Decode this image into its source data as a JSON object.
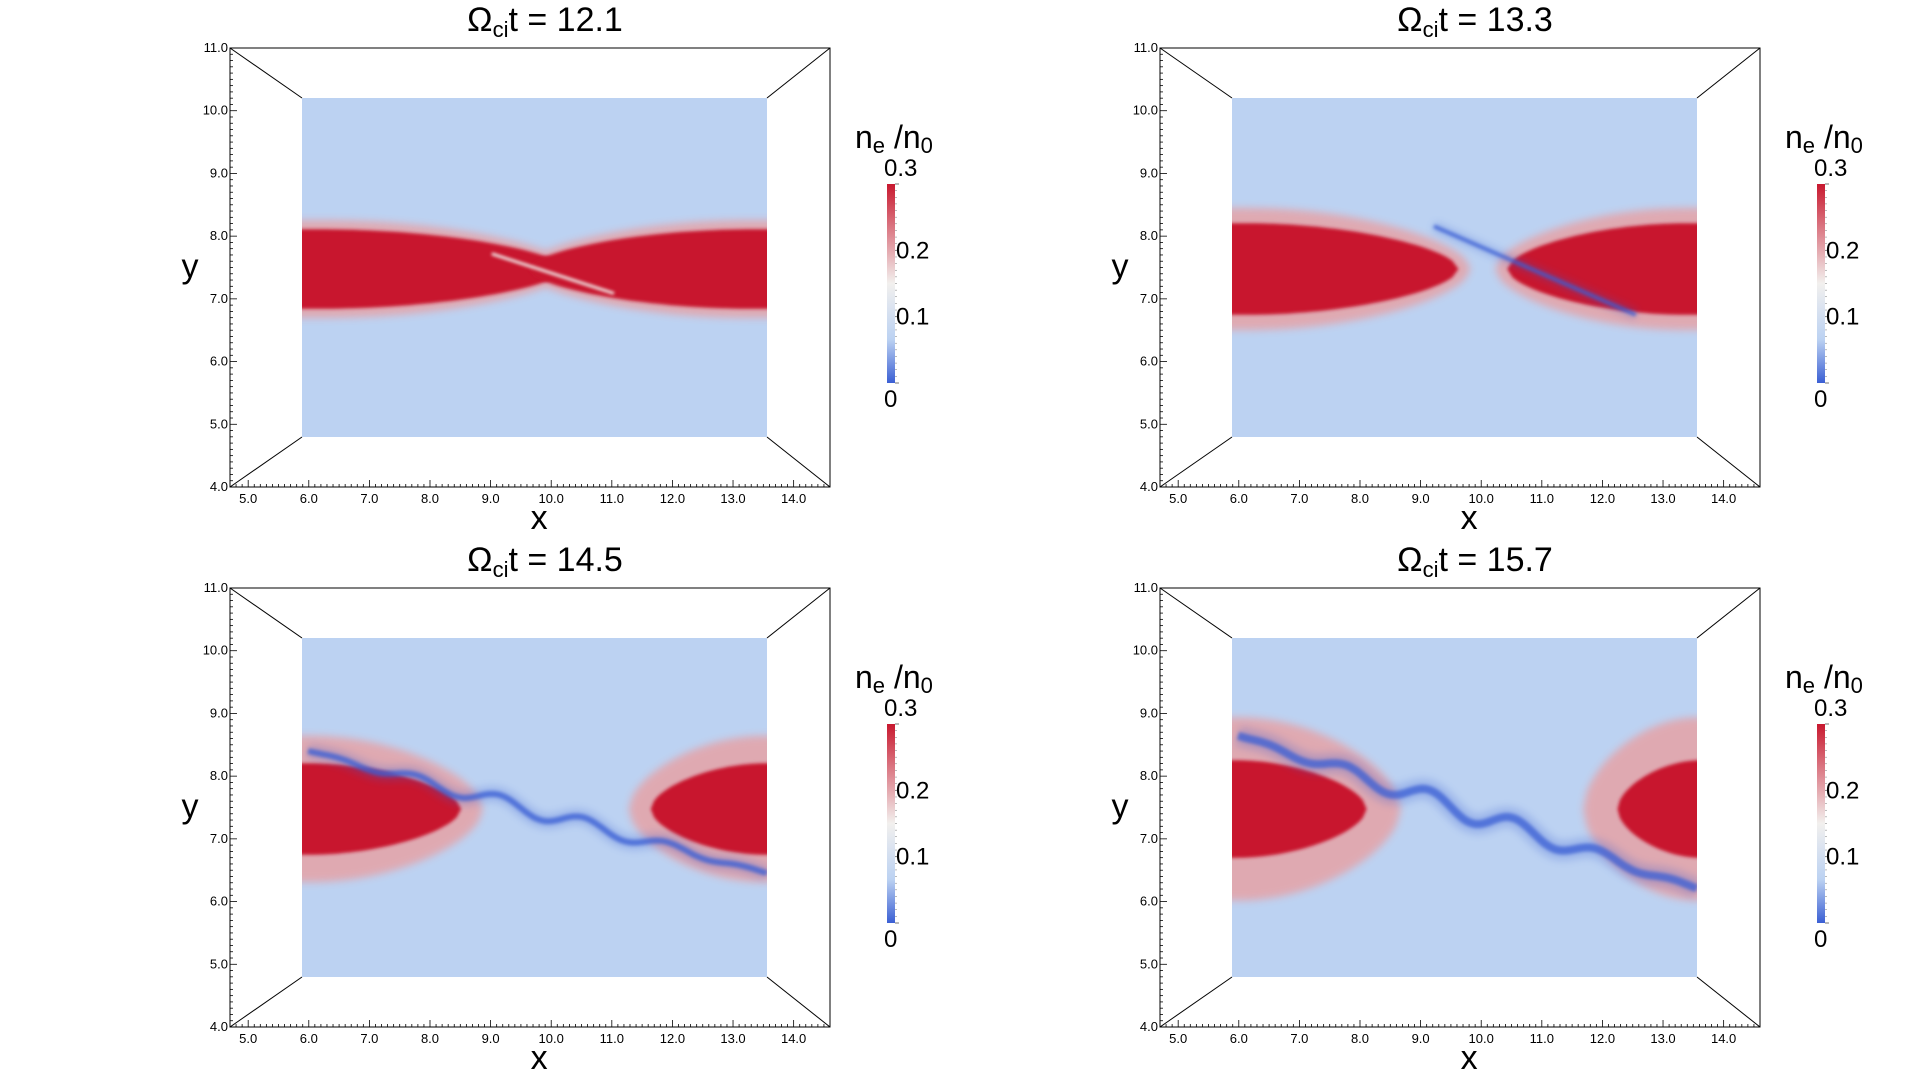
{
  "chart_data": [
    {
      "type": "heatmap",
      "title": "Ωcit = 12.1",
      "title_symbol": "Ω",
      "title_subscript": "ci",
      "title_rest": "t = 12.1",
      "xlabel": "x",
      "ylabel": "y",
      "xlim": [
        4.7,
        14.6
      ],
      "ylim": [
        4.0,
        11.0
      ],
      "x_ticks": [
        "5.0",
        "6.0",
        "7.0",
        "8.0",
        "9.0",
        "10.0",
        "11.0",
        "12.0",
        "13.0",
        "14.0"
      ],
      "y_ticks": [
        "4.0",
        "5.0",
        "6.0",
        "7.0",
        "8.0",
        "9.0",
        "10.0",
        "11.0"
      ],
      "colorbar": {
        "label_main": "n",
        "label_sub": "e",
        "label_slash": " /n",
        "label_sub2": "0",
        "ticks": [
          "0.3",
          "0.2",
          "0.1",
          "0"
        ]
      },
      "field_extent": {
        "x": [
          5.9,
          13.5
        ],
        "y": [
          4.75,
          10.3
        ]
      },
      "stage": 0,
      "sheet_center_y": 7.5,
      "lobe_halfwidth": 0.65
    },
    {
      "type": "heatmap",
      "title": "Ωcit = 13.3",
      "title_symbol": "Ω",
      "title_subscript": "ci",
      "title_rest": "t = 13.3",
      "xlabel": "x",
      "ylabel": "y",
      "xlim": [
        4.7,
        14.6
      ],
      "ylim": [
        4.0,
        11.0
      ],
      "x_ticks": [
        "5.0",
        "6.0",
        "7.0",
        "8.0",
        "9.0",
        "10.0",
        "11.0",
        "12.0",
        "13.0",
        "14.0"
      ],
      "y_ticks": [
        "4.0",
        "5.0",
        "6.0",
        "7.0",
        "8.0",
        "9.0",
        "10.0",
        "11.0"
      ],
      "colorbar": {
        "label_main": "n",
        "label_sub": "e",
        "label_slash": " /n",
        "label_sub2": "0",
        "ticks": [
          "0.3",
          "0.2",
          "0.1",
          "0"
        ]
      },
      "field_extent": {
        "x": [
          5.9,
          13.5
        ],
        "y": [
          4.75,
          10.3
        ]
      },
      "stage": 1,
      "sheet_center_y": 7.5,
      "lobe_halfwidth": 0.75
    },
    {
      "type": "heatmap",
      "title": "Ωcit = 14.5",
      "title_symbol": "Ω",
      "title_subscript": "ci",
      "title_rest": "t = 14.5",
      "xlabel": "x",
      "ylabel": "y",
      "xlim": [
        4.7,
        14.6
      ],
      "ylim": [
        4.0,
        11.0
      ],
      "x_ticks": [
        "5.0",
        "6.0",
        "7.0",
        "8.0",
        "9.0",
        "10.0",
        "11.0",
        "12.0",
        "13.0",
        "14.0"
      ],
      "y_ticks": [
        "4.0",
        "5.0",
        "6.0",
        "7.0",
        "8.0",
        "9.0",
        "10.0",
        "11.0"
      ],
      "colorbar": {
        "label_main": "n",
        "label_sub": "e",
        "label_slash": " /n",
        "label_sub2": "0",
        "ticks": [
          "0.3",
          "0.2",
          "0.1",
          "0"
        ]
      },
      "field_extent": {
        "x": [
          5.9,
          13.5
        ],
        "y": [
          4.75,
          10.3
        ]
      },
      "stage": 2,
      "sheet_center_y": 7.5,
      "lobe_halfwidth": 0.75
    },
    {
      "type": "heatmap",
      "title": "Ωcit = 15.7",
      "title_symbol": "Ω",
      "title_subscript": "ci",
      "title_rest": "t = 15.7",
      "xlabel": "x",
      "ylabel": "y",
      "xlim": [
        4.7,
        14.6
      ],
      "ylim": [
        4.0,
        11.0
      ],
      "x_ticks": [
        "5.0",
        "6.0",
        "7.0",
        "8.0",
        "9.0",
        "10.0",
        "11.0",
        "12.0",
        "13.0",
        "14.0"
      ],
      "y_ticks": [
        "4.0",
        "5.0",
        "6.0",
        "7.0",
        "8.0",
        "9.0",
        "10.0",
        "11.0"
      ],
      "colorbar": {
        "label_main": "n",
        "label_sub": "e",
        "label_slash": " /n",
        "label_sub2": "0",
        "ticks": [
          "0.3",
          "0.2",
          "0.1",
          "0"
        ]
      },
      "field_extent": {
        "x": [
          5.9,
          13.5
        ],
        "y": [
          4.75,
          10.3
        ]
      },
      "stage": 3,
      "sheet_center_y": 7.5,
      "lobe_halfwidth": 0.8
    }
  ],
  "colors": {
    "high": "#c8192f",
    "mid": "#f2f0ee",
    "low": "#bcd2f2",
    "min": "#3b5fd4",
    "frame": "#000000"
  }
}
